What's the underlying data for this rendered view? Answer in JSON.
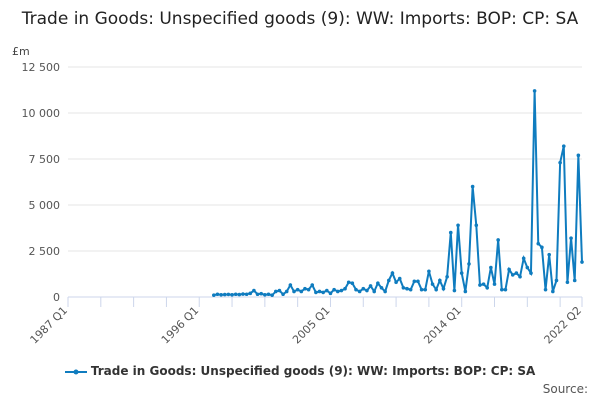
{
  "chart_data": {
    "type": "line",
    "title": "Trade in Goods: Unspecified goods (9): WW: Imports: BOP: CP: SA",
    "ylabel": "£m",
    "xlabel": "",
    "x_range": [
      "1987 Q1",
      "2022 Q2"
    ],
    "x_ticks": [
      "1987 Q1",
      "1996 Q1",
      "2005 Q1",
      "2014 Q1",
      "2022 Q2"
    ],
    "ylim": [
      0,
      12500
    ],
    "y_ticks": [
      0,
      2500,
      5000,
      7500,
      10000,
      12500
    ],
    "y_tick_labels": [
      "0",
      "2 500",
      "5 000",
      "7 500",
      "10 000",
      "12 500"
    ],
    "grid": "horizontal",
    "legend": "bottom",
    "color": "#0f7cbf",
    "series": [
      {
        "name": "Trade in Goods: Unspecified goods (9): WW: Imports: BOP: CP: SA",
        "start": "1997 Q1",
        "values": [
          100,
          150,
          120,
          130,
          140,
          120,
          150,
          130,
          160,
          150,
          200,
          350,
          150,
          180,
          120,
          150,
          100,
          300,
          350,
          150,
          300,
          650,
          300,
          400,
          300,
          450,
          400,
          650,
          250,
          300,
          250,
          350,
          200,
          400,
          300,
          350,
          450,
          800,
          750,
          400,
          300,
          450,
          350,
          600,
          300,
          750,
          500,
          300,
          900,
          1300,
          800,
          1000,
          500,
          450,
          400,
          850,
          850,
          400,
          400,
          1400,
          700,
          400,
          900,
          450,
          1100,
          3500,
          350,
          3900,
          1300,
          300,
          1800,
          6000,
          3900,
          650,
          700,
          500,
          1600,
          700,
          3100,
          400,
          400,
          1500,
          1200,
          1300,
          1100,
          2100,
          1600,
          1300,
          11200,
          2900,
          2700,
          400,
          2300,
          300,
          900,
          7300,
          8200,
          800,
          3200,
          900,
          7700,
          1900
        ]
      }
    ]
  },
  "source_label": "Source:"
}
